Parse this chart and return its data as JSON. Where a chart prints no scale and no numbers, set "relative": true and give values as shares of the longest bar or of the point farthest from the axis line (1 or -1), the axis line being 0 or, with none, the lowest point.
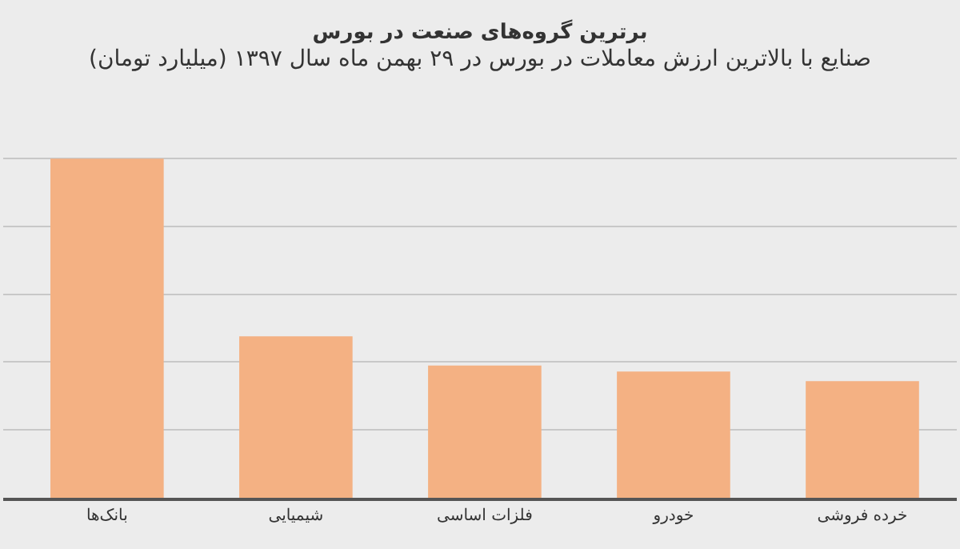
{
  "chart_data": {
    "type": "bar",
    "title": "برترین گروه‌های صنعت در بورس",
    "subtitle": "صنایع با بالاترین ارزش معاملات در بورس در ۲۹ بهمن ماه سال ۱۳۹۷ (میلیارد تومان)",
    "relative": true,
    "categories": [
      "بانک‌ها",
      "شیمیایی",
      "فلزات اساسی",
      "خودرو",
      "خرده فروشی"
    ],
    "values": [
      1,
      0.476,
      0.39,
      0.372,
      0.344
    ],
    "color": "#f4b183",
    "grid": "y"
  }
}
